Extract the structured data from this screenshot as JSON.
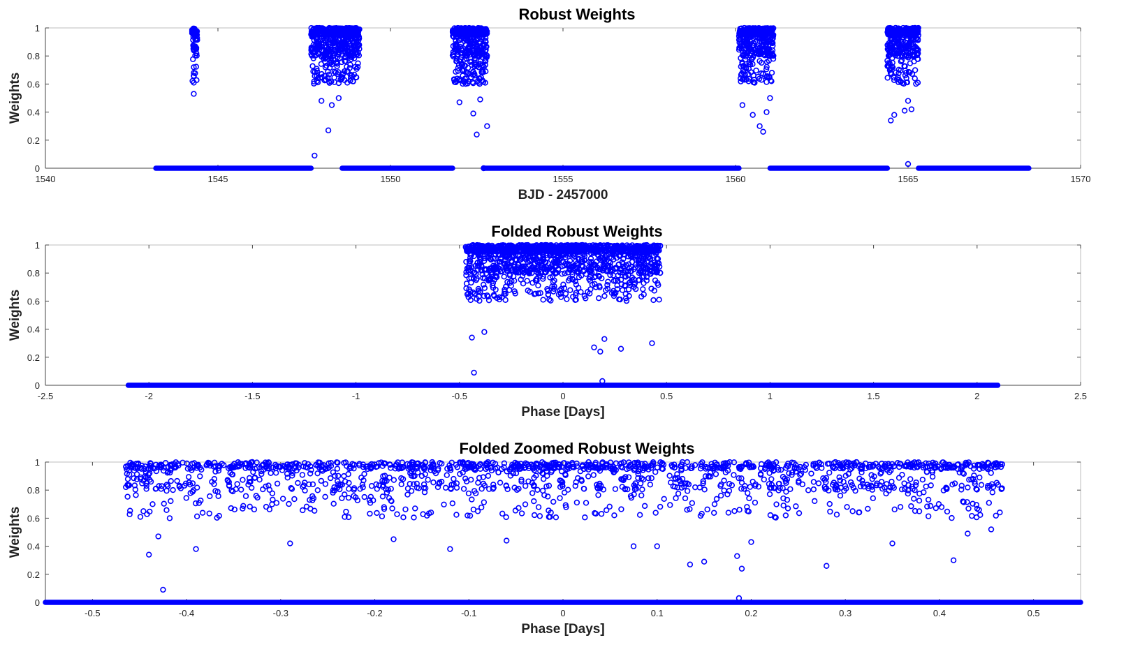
{
  "colors": {
    "marker": "#0000ff",
    "axis": "#444444",
    "frame": "#bdbdbd"
  },
  "chart_data": [
    {
      "type": "scatter",
      "title": "Robust Weights",
      "xlabel": "BJD - 2457000",
      "ylabel": "Weights",
      "xlim": [
        1540,
        1570
      ],
      "ylim": [
        0,
        1
      ],
      "xticks": [
        1540,
        1545,
        1550,
        1555,
        1560,
        1565,
        1570
      ],
      "yticks": [
        0,
        0.2,
        0.4,
        0.6,
        0.8,
        1
      ],
      "marker": "open-circle",
      "grid": false,
      "zero_weight_segments": [
        [
          1543.2,
          1547.7
        ],
        [
          1548.6,
          1551.8
        ],
        [
          1552.7,
          1560.1
        ],
        [
          1561.0,
          1564.4
        ],
        [
          1565.3,
          1568.5
        ]
      ],
      "transit_windows": [
        [
          1544.25,
          1544.4
        ],
        [
          1547.7,
          1549.1
        ],
        [
          1551.8,
          1552.8
        ],
        [
          1560.1,
          1561.1
        ],
        [
          1564.4,
          1565.3
        ]
      ],
      "outliers": [
        {
          "x": 1544.3,
          "y": 0.53
        },
        {
          "x": 1544.3,
          "y": 0.61
        },
        {
          "x": 1544.3,
          "y": 0.68
        },
        {
          "x": 1544.3,
          "y": 0.72
        },
        {
          "x": 1544.3,
          "y": 0.84
        },
        {
          "x": 1544.3,
          "y": 0.87
        },
        {
          "x": 1547.8,
          "y": 0.09
        },
        {
          "x": 1548.2,
          "y": 0.27
        },
        {
          "x": 1548.0,
          "y": 0.48
        },
        {
          "x": 1548.3,
          "y": 0.45
        },
        {
          "x": 1548.5,
          "y": 0.5
        },
        {
          "x": 1548.55,
          "y": 0.63
        },
        {
          "x": 1552.5,
          "y": 0.24
        },
        {
          "x": 1552.8,
          "y": 0.3
        },
        {
          "x": 1552.4,
          "y": 0.39
        },
        {
          "x": 1552.0,
          "y": 0.47
        },
        {
          "x": 1552.6,
          "y": 0.49
        },
        {
          "x": 1552.7,
          "y": 0.0
        },
        {
          "x": 1560.8,
          "y": 0.26
        },
        {
          "x": 1560.7,
          "y": 0.3
        },
        {
          "x": 1560.5,
          "y": 0.38
        },
        {
          "x": 1560.2,
          "y": 0.45
        },
        {
          "x": 1560.9,
          "y": 0.4
        },
        {
          "x": 1561.0,
          "y": 0.5
        },
        {
          "x": 1564.5,
          "y": 0.34
        },
        {
          "x": 1564.6,
          "y": 0.38
        },
        {
          "x": 1564.9,
          "y": 0.41
        },
        {
          "x": 1565.1,
          "y": 0.42
        },
        {
          "x": 1565.0,
          "y": 0.48
        },
        {
          "x": 1565.0,
          "y": 0.03
        }
      ]
    },
    {
      "type": "scatter",
      "title": "Folded Robust Weights",
      "xlabel": "Phase [Days]",
      "ylabel": "Weights",
      "xlim": [
        -2.5,
        2.5
      ],
      "ylim": [
        0,
        1
      ],
      "xticks": [
        -2.5,
        -2,
        -1.5,
        -1,
        -0.5,
        0,
        0.5,
        1,
        1.5,
        2,
        2.5
      ],
      "yticks": [
        0,
        0.2,
        0.4,
        0.6,
        0.8,
        1
      ],
      "marker": "open-circle",
      "grid": false,
      "zero_weight_range": [
        -2.1,
        2.1
      ],
      "transit_window": [
        -0.47,
        0.47
      ],
      "outliers": [
        {
          "x": -0.43,
          "y": 0.09
        },
        {
          "x": 0.19,
          "y": 0.03
        },
        {
          "x": -0.44,
          "y": 0.34
        },
        {
          "x": 0.43,
          "y": 0.3
        },
        {
          "x": 0.18,
          "y": 0.24
        },
        {
          "x": 0.15,
          "y": 0.27
        },
        {
          "x": 0.28,
          "y": 0.26
        },
        {
          "x": -0.38,
          "y": 0.38
        },
        {
          "x": 0.2,
          "y": 0.33
        }
      ]
    },
    {
      "type": "scatter",
      "title": "Folded Zoomed Robust Weights",
      "xlabel": "Phase [Days]",
      "ylabel": "Weights",
      "xlim": [
        -0.55,
        0.55
      ],
      "ylim": [
        0,
        1
      ],
      "xticks": [
        -0.5,
        -0.4,
        -0.3,
        -0.2,
        -0.1,
        0,
        0.1,
        0.2,
        0.3,
        0.4,
        0.5
      ],
      "yticks": [
        0,
        0.2,
        0.4,
        0.6,
        0.8,
        1
      ],
      "marker": "open-circle",
      "grid": false,
      "zero_weight_range": [
        -0.55,
        0.55
      ],
      "transit_window": [
        -0.465,
        0.467
      ],
      "outliers": [
        {
          "x": -0.425,
          "y": 0.09
        },
        {
          "x": 0.187,
          "y": 0.03
        },
        {
          "x": -0.44,
          "y": 0.34
        },
        {
          "x": -0.43,
          "y": 0.47
        },
        {
          "x": -0.39,
          "y": 0.38
        },
        {
          "x": 0.415,
          "y": 0.3
        },
        {
          "x": 0.19,
          "y": 0.24
        },
        {
          "x": 0.135,
          "y": 0.27
        },
        {
          "x": 0.15,
          "y": 0.29
        },
        {
          "x": 0.28,
          "y": 0.26
        },
        {
          "x": 0.185,
          "y": 0.33
        },
        {
          "x": -0.12,
          "y": 0.38
        },
        {
          "x": -0.29,
          "y": 0.42
        },
        {
          "x": 0.075,
          "y": 0.4
        },
        {
          "x": 0.1,
          "y": 0.4
        },
        {
          "x": 0.2,
          "y": 0.43
        },
        {
          "x": 0.35,
          "y": 0.42
        },
        {
          "x": -0.06,
          "y": 0.44
        },
        {
          "x": -0.18,
          "y": 0.45
        },
        {
          "x": 0.43,
          "y": 0.49
        },
        {
          "x": 0.455,
          "y": 0.52
        }
      ]
    }
  ]
}
